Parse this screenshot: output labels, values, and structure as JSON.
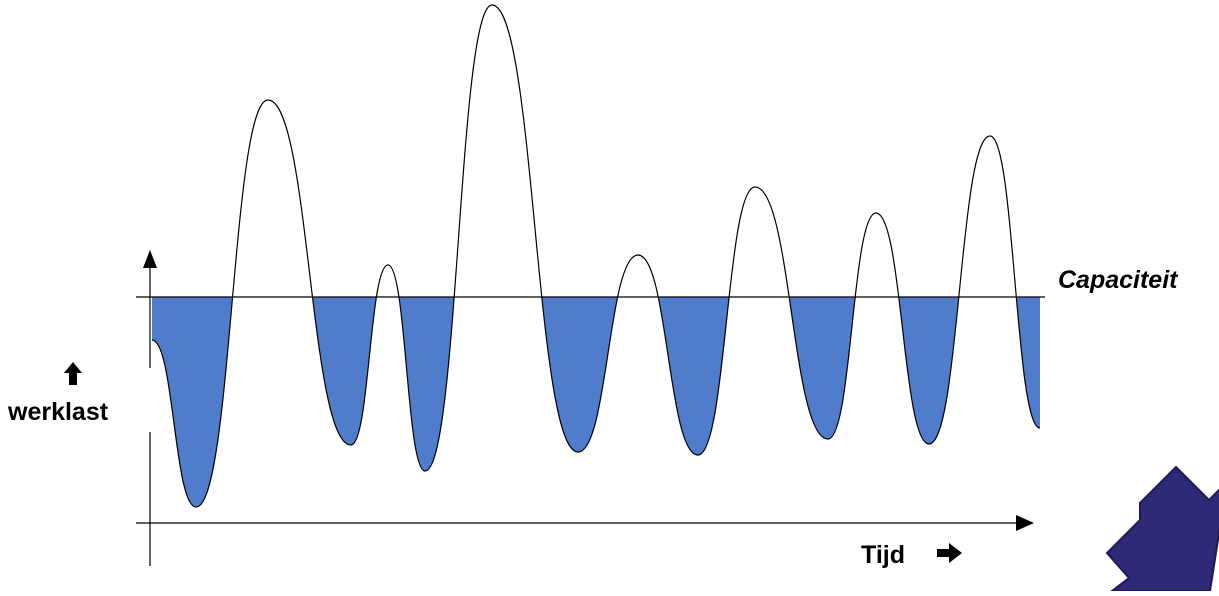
{
  "labels": {
    "capacity": "Capaciteit",
    "y_axis": "werklast",
    "x_axis": "Tijd"
  },
  "colors": {
    "fill": "#4F7CCB",
    "line": "#000000",
    "nav_arrow": "#2E2A78"
  },
  "icons": {
    "y_label_arrow": "up-arrow-icon",
    "x_label_arrow": "right-arrow-icon",
    "nav_arrow": "down-right-arrow-icon"
  }
}
